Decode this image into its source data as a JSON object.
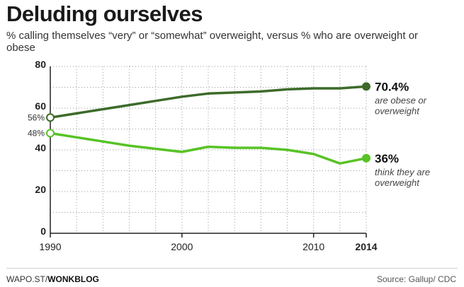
{
  "chart_data": {
    "type": "line",
    "title": "Deluding ourselves",
    "subtitle": "% calling themselves “very” or “somewhat” overweight, versus % who are overweight or obese",
    "xlabel": "",
    "ylabel": "",
    "xlim": [
      1990,
      2014
    ],
    "ylim": [
      0,
      80
    ],
    "yticks": [
      0,
      20,
      40,
      60,
      80
    ],
    "ytick_labels": [
      "0",
      "20",
      "40",
      "60",
      "80"
    ],
    "xticks": [
      1990,
      2000,
      2010,
      2014
    ],
    "xtick_labels": [
      "1990",
      "2000",
      "2010",
      "2014"
    ],
    "grid": true,
    "series": [
      {
        "id": "obese",
        "color": "#3d6b2a",
        "points": [
          [
            1990,
            55.5
          ],
          [
            1992,
            57.5
          ],
          [
            1994,
            59.5
          ],
          [
            1996,
            61.5
          ],
          [
            1998,
            63.5
          ],
          [
            2000,
            65.5
          ],
          [
            2002,
            67
          ],
          [
            2004,
            67.5
          ],
          [
            2006,
            68
          ],
          [
            2008,
            69
          ],
          [
            2010,
            69.5
          ],
          [
            2012,
            69.5
          ],
          [
            2014,
            70.4
          ]
        ],
        "start_label": "56%",
        "end_label": "70.4%",
        "end_note": [
          "are obese or",
          "overweight"
        ]
      },
      {
        "id": "think",
        "color": "#57c325",
        "points": [
          [
            1990,
            48
          ],
          [
            1992,
            46
          ],
          [
            1994,
            44
          ],
          [
            1996,
            42
          ],
          [
            1998,
            40.5
          ],
          [
            2000,
            39
          ],
          [
            2002,
            41.5
          ],
          [
            2004,
            41
          ],
          [
            2006,
            41
          ],
          [
            2008,
            40
          ],
          [
            2010,
            38
          ],
          [
            2012,
            33.5
          ],
          [
            2014,
            36
          ]
        ],
        "start_label": "48%",
        "end_label": "36%",
        "end_note": [
          "think they are",
          "overweight"
        ]
      }
    ]
  },
  "footer": {
    "source_prefix": "WAPO.ST/",
    "source_brand": "WONKBLOG",
    "credit": "Source: Gallup/ CDC"
  }
}
